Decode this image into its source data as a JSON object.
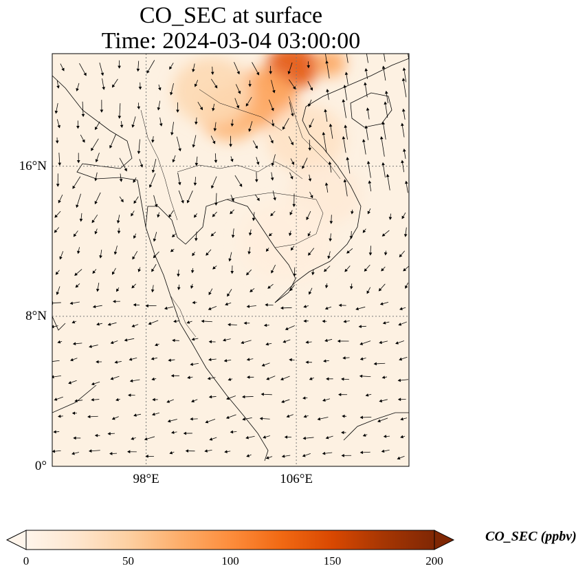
{
  "title": {
    "line1": "CO_SEC at surface",
    "line2": "Time: 2024-03-04 03:00:00"
  },
  "axes": {
    "lat_ticks": [
      {
        "value": 16,
        "label": "16°N"
      },
      {
        "value": 8,
        "label": "8°N"
      },
      {
        "value": 0,
        "label": "0°"
      }
    ],
    "lon_ticks": [
      {
        "value": 98,
        "label": "98°E"
      },
      {
        "value": 106,
        "label": "106°E"
      }
    ],
    "lon_range": [
      93,
      112
    ],
    "lat_range": [
      0,
      22
    ]
  },
  "colorbar": {
    "title": "CO_SEC (ppbv)",
    "min": 0,
    "max": 200,
    "ticks": [
      {
        "value": 0,
        "label": "0"
      },
      {
        "value": 50,
        "label": "50"
      },
      {
        "value": 100,
        "label": "100"
      },
      {
        "value": 150,
        "label": "150"
      },
      {
        "value": 200,
        "label": "200"
      }
    ],
    "colors": [
      "#fff5eb",
      "#fee6ce",
      "#fdd0a2",
      "#fdae6b",
      "#fd8d3c",
      "#f16913",
      "#d94801",
      "#a63603",
      "#7f2704"
    ]
  },
  "plumes": [
    {
      "lon": 105.8,
      "lat": 21.3,
      "value": 140,
      "spread": 1.0
    },
    {
      "lon": 104.2,
      "lat": 19.6,
      "value": 85,
      "spread": 1.3
    },
    {
      "lon": 102.5,
      "lat": 18.8,
      "value": 70,
      "spread": 1.2
    },
    {
      "lon": 101.5,
      "lat": 20.0,
      "value": 40,
      "spread": 1.5
    },
    {
      "lon": 107.8,
      "lat": 21.5,
      "value": 80,
      "spread": 0.6
    },
    {
      "lon": 106.5,
      "lat": 17.5,
      "value": 30,
      "spread": 1.5
    },
    {
      "lon": 107.5,
      "lat": 14.5,
      "value": 18,
      "spread": 1.4
    },
    {
      "lon": 105.5,
      "lat": 12.0,
      "value": 12,
      "spread": 1.8
    }
  ]
}
